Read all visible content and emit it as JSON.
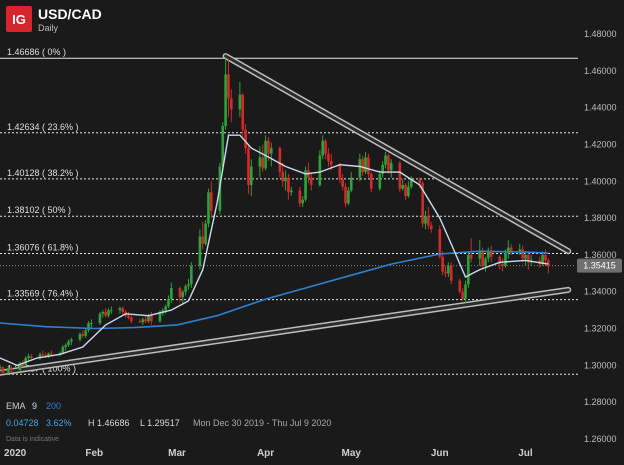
{
  "header": {
    "logo": "IG",
    "symbol": "USD/CAD",
    "interval": "Daily"
  },
  "colors": {
    "background": "#1a1a1a",
    "logo_bg": "#d7262b",
    "up": "#2ea33a",
    "down": "#d42a2a",
    "ema_short": "#c9dcef",
    "ema_long": "#2f80d0",
    "trendline": "#bdbdbd",
    "fib_line": "#e6e6e6",
    "last_price_bg": "#6f6f6f",
    "grid": "#3a3a3a"
  },
  "footer": {
    "ema_label": "EMA",
    "ema_short": "9",
    "ema_long": "200",
    "change": "0.04728",
    "change_pct": "3.62%",
    "high": "H 1.46686",
    "low": "L 1.29517",
    "range": "Mon Dec 30 2019 - Thu Jul 9 2020",
    "disclaimer": "Data is indicative"
  },
  "chart_data": {
    "type": "candlestick",
    "title": "USD/CAD Daily",
    "ylim": [
      1.26,
      1.48
    ],
    "y_ticks": [
      "1.48000",
      "1.46000",
      "1.44000",
      "1.42000",
      "1.40000",
      "1.38000",
      "1.36000",
      "1.34000",
      "1.32000",
      "1.30000",
      "1.28000",
      "1.26000"
    ],
    "x_labels": [
      "2020",
      "Feb",
      "Mar",
      "Apr",
      "May",
      "Jun",
      "Jul"
    ],
    "x_label_dates": [
      "2020-01-01",
      "2020-02-01",
      "2020-03-01",
      "2020-04-01",
      "2020-05-01",
      "2020-06-01",
      "2020-07-01"
    ],
    "x_start": "2019-12-30",
    "x_end": "2020-07-09",
    "x_axis_end": "2020-07-18",
    "last_price": "1.35415",
    "high": 1.46686,
    "low": 1.29517,
    "fib_levels": [
      {
        "label": "1.46686 ( 0% )",
        "value": 1.46686
      },
      {
        "label": "1.42634 ( 23.6% )",
        "value": 1.42634
      },
      {
        "label": "1.40128 ( 38.2% )",
        "value": 1.40128
      },
      {
        "label": "1.38102 ( 50% )",
        "value": 1.38102
      },
      {
        "label": "1.36076 ( 61.8% )",
        "value": 1.36076
      },
      {
        "label": "1.33569 ( 76.4% )",
        "value": 1.33569
      },
      {
        "label": "1.29517 ( 100% )",
        "value": 1.29517
      }
    ],
    "trendlines": [
      {
        "start": [
          "2020-03-18",
          1.468
        ],
        "end": [
          "2020-07-16",
          1.362
        ],
        "width": 4
      },
      {
        "start": [
          "2019-12-30",
          1.296
        ],
        "end": [
          "2020-07-16",
          1.341
        ],
        "width": 4
      }
    ],
    "ema_200": [
      [
        "2019-12-30",
        1.323
      ],
      [
        "2020-01-15",
        1.321
      ],
      [
        "2020-02-01",
        1.32
      ],
      [
        "2020-02-15",
        1.3205
      ],
      [
        "2020-03-01",
        1.322
      ],
      [
        "2020-03-15",
        1.327
      ],
      [
        "2020-04-01",
        1.336
      ],
      [
        "2020-04-15",
        1.342
      ],
      [
        "2020-05-01",
        1.349
      ],
      [
        "2020-05-15",
        1.355
      ],
      [
        "2020-06-01",
        1.3605
      ],
      [
        "2020-06-15",
        1.362
      ],
      [
        "2020-07-01",
        1.3615
      ],
      [
        "2020-07-09",
        1.361
      ]
    ],
    "ema_9": [
      [
        "2019-12-30",
        1.304
      ],
      [
        "2020-01-05",
        1.3
      ],
      [
        "2020-01-12",
        1.304
      ],
      [
        "2020-01-20",
        1.306
      ],
      [
        "2020-01-28",
        1.31
      ],
      [
        "2020-02-05",
        1.322
      ],
      [
        "2020-02-12",
        1.328
      ],
      [
        "2020-02-20",
        1.327
      ],
      [
        "2020-02-28",
        1.33
      ],
      [
        "2020-03-05",
        1.335
      ],
      [
        "2020-03-10",
        1.352
      ],
      [
        "2020-03-15",
        1.388
      ],
      [
        "2020-03-19",
        1.425
      ],
      [
        "2020-03-23",
        1.425
      ],
      [
        "2020-03-27",
        1.418
      ],
      [
        "2020-04-01",
        1.414
      ],
      [
        "2020-04-08",
        1.408
      ],
      [
        "2020-04-15",
        1.404
      ],
      [
        "2020-04-20",
        1.405
      ],
      [
        "2020-04-27",
        1.409
      ],
      [
        "2020-05-04",
        1.408
      ],
      [
        "2020-05-11",
        1.405
      ],
      [
        "2020-05-18",
        1.405
      ],
      [
        "2020-05-25",
        1.398
      ],
      [
        "2020-06-01",
        1.38
      ],
      [
        "2020-06-05",
        1.366
      ],
      [
        "2020-06-10",
        1.348
      ],
      [
        "2020-06-15",
        1.352
      ],
      [
        "2020-06-22",
        1.356
      ],
      [
        "2020-07-01",
        1.357
      ],
      [
        "2020-07-09",
        1.355
      ]
    ],
    "candles": [
      [
        "2019-12-30",
        1.299,
        1.3005,
        1.2965,
        1.299
      ],
      [
        "2019-12-31",
        1.299,
        1.2995,
        1.2952,
        1.296
      ],
      [
        "2020-01-02",
        1.296,
        1.3,
        1.2955,
        1.2985
      ],
      [
        "2020-01-03",
        1.2985,
        1.3,
        1.296,
        1.2975
      ],
      [
        "2020-01-06",
        1.2975,
        1.302,
        1.297,
        1.301
      ],
      [
        "2020-01-07",
        1.301,
        1.303,
        1.299,
        1.3
      ],
      [
        "2020-01-08",
        1.3,
        1.305,
        1.2995,
        1.304
      ],
      [
        "2020-01-09",
        1.304,
        1.3065,
        1.302,
        1.305
      ],
      [
        "2020-01-10",
        1.305,
        1.306,
        1.303,
        1.304
      ],
      [
        "2020-01-13",
        1.304,
        1.307,
        1.303,
        1.306
      ],
      [
        "2020-01-14",
        1.306,
        1.308,
        1.3045,
        1.3055
      ],
      [
        "2020-01-15",
        1.3055,
        1.307,
        1.304,
        1.305
      ],
      [
        "2020-01-16",
        1.305,
        1.307,
        1.304,
        1.3065
      ],
      [
        "2020-01-17",
        1.3065,
        1.308,
        1.305,
        1.306
      ],
      [
        "2020-01-20",
        1.306,
        1.3075,
        1.305,
        1.3065
      ],
      [
        "2020-01-21",
        1.3065,
        1.311,
        1.306,
        1.31
      ],
      [
        "2020-01-22",
        1.31,
        1.312,
        1.308,
        1.311
      ],
      [
        "2020-01-23",
        1.311,
        1.314,
        1.31,
        1.313
      ],
      [
        "2020-01-24",
        1.313,
        1.315,
        1.311,
        1.314
      ],
      [
        "2020-01-27",
        1.314,
        1.318,
        1.313,
        1.317
      ],
      [
        "2020-01-28",
        1.317,
        1.319,
        1.315,
        1.316
      ],
      [
        "2020-01-29",
        1.316,
        1.32,
        1.315,
        1.319
      ],
      [
        "2020-01-30",
        1.319,
        1.324,
        1.318,
        1.323
      ],
      [
        "2020-01-31",
        1.323,
        1.325,
        1.32,
        1.323
      ],
      [
        "2020-02-03",
        1.323,
        1.329,
        1.322,
        1.328
      ],
      [
        "2020-02-04",
        1.328,
        1.33,
        1.326,
        1.329
      ],
      [
        "2020-02-05",
        1.329,
        1.331,
        1.326,
        1.327
      ],
      [
        "2020-02-06",
        1.327,
        1.331,
        1.326,
        1.33
      ],
      [
        "2020-02-07",
        1.33,
        1.332,
        1.328,
        1.33
      ],
      [
        "2020-02-10",
        1.33,
        1.332,
        1.328,
        1.331
      ],
      [
        "2020-02-11",
        1.331,
        1.332,
        1.327,
        1.329
      ],
      [
        "2020-02-12",
        1.329,
        1.33,
        1.326,
        1.327
      ],
      [
        "2020-02-13",
        1.327,
        1.329,
        1.325,
        1.326
      ],
      [
        "2020-02-14",
        1.326,
        1.327,
        1.323,
        1.324
      ],
      [
        "2020-02-17",
        1.324,
        1.325,
        1.323,
        1.3235
      ],
      [
        "2020-02-18",
        1.3235,
        1.326,
        1.322,
        1.325
      ],
      [
        "2020-02-19",
        1.325,
        1.327,
        1.323,
        1.324
      ],
      [
        "2020-02-20",
        1.324,
        1.328,
        1.323,
        1.327
      ],
      [
        "2020-02-21",
        1.327,
        1.329,
        1.322,
        1.324
      ],
      [
        "2020-02-24",
        1.324,
        1.33,
        1.323,
        1.329
      ],
      [
        "2020-02-25",
        1.329,
        1.331,
        1.327,
        1.33
      ],
      [
        "2020-02-26",
        1.33,
        1.333,
        1.328,
        1.332
      ],
      [
        "2020-02-27",
        1.332,
        1.338,
        1.331,
        1.336
      ],
      [
        "2020-02-28",
        1.336,
        1.345,
        1.334,
        1.342
      ],
      [
        "2020-03-02",
        1.342,
        1.343,
        1.334,
        1.337
      ],
      [
        "2020-03-03",
        1.337,
        1.341,
        1.333,
        1.34
      ],
      [
        "2020-03-04",
        1.34,
        1.344,
        1.338,
        1.343
      ],
      [
        "2020-03-05",
        1.343,
        1.347,
        1.341,
        1.344
      ],
      [
        "2020-03-06",
        1.344,
        1.356,
        1.342,
        1.354
      ],
      [
        "2020-03-09",
        1.354,
        1.374,
        1.352,
        1.37
      ],
      [
        "2020-03-10",
        1.37,
        1.378,
        1.363,
        1.366
      ],
      [
        "2020-03-11",
        1.366,
        1.379,
        1.365,
        1.377
      ],
      [
        "2020-03-12",
        1.377,
        1.396,
        1.375,
        1.394
      ],
      [
        "2020-03-13",
        1.394,
        1.4,
        1.38,
        1.384
      ],
      [
        "2020-03-16",
        1.384,
        1.41,
        1.382,
        1.408
      ],
      [
        "2020-03-17",
        1.408,
        1.432,
        1.406,
        1.43
      ],
      [
        "2020-03-18",
        1.43,
        1.4668,
        1.428,
        1.458
      ],
      [
        "2020-03-19",
        1.458,
        1.466,
        1.435,
        1.445
      ],
      [
        "2020-03-20",
        1.445,
        1.45,
        1.432,
        1.439
      ],
      [
        "2020-03-23",
        1.439,
        1.454,
        1.435,
        1.447
      ],
      [
        "2020-03-24",
        1.447,
        1.448,
        1.423,
        1.428
      ],
      [
        "2020-03-25",
        1.428,
        1.431,
        1.415,
        1.418
      ],
      [
        "2020-03-26",
        1.418,
        1.42,
        1.393,
        1.398
      ],
      [
        "2020-03-27",
        1.398,
        1.412,
        1.392,
        1.408
      ],
      [
        "2020-03-30",
        1.408,
        1.419,
        1.402,
        1.413
      ],
      [
        "2020-03-31",
        1.413,
        1.42,
        1.405,
        1.407
      ],
      [
        "2020-04-01",
        1.407,
        1.425,
        1.406,
        1.422
      ],
      [
        "2020-04-02",
        1.422,
        1.424,
        1.411,
        1.415
      ],
      [
        "2020-04-03",
        1.415,
        1.421,
        1.408,
        1.418
      ],
      [
        "2020-04-06",
        1.418,
        1.419,
        1.402,
        1.405
      ],
      [
        "2020-04-07",
        1.405,
        1.41,
        1.397,
        1.4
      ],
      [
        "2020-04-08",
        1.4,
        1.406,
        1.395,
        1.402
      ],
      [
        "2020-04-09",
        1.402,
        1.404,
        1.39,
        1.394
      ],
      [
        "2020-04-10",
        1.394,
        1.397,
        1.392,
        1.395
      ],
      [
        "2020-04-13",
        1.395,
        1.397,
        1.386,
        1.388
      ],
      [
        "2020-04-14",
        1.388,
        1.392,
        1.386,
        1.39
      ],
      [
        "2020-04-15",
        1.39,
        1.408,
        1.389,
        1.406
      ],
      [
        "2020-04-16",
        1.406,
        1.41,
        1.399,
        1.402
      ],
      [
        "2020-04-17",
        1.402,
        1.405,
        1.395,
        1.398
      ],
      [
        "2020-04-20",
        1.398,
        1.417,
        1.397,
        1.414
      ],
      [
        "2020-04-21",
        1.414,
        1.425,
        1.412,
        1.422
      ],
      [
        "2020-04-22",
        1.422,
        1.423,
        1.412,
        1.415
      ],
      [
        "2020-04-23",
        1.415,
        1.418,
        1.408,
        1.411
      ],
      [
        "2020-04-24",
        1.411,
        1.415,
        1.406,
        1.409
      ],
      [
        "2020-04-27",
        1.409,
        1.41,
        1.399,
        1.401
      ],
      [
        "2020-04-28",
        1.401,
        1.404,
        1.395,
        1.397
      ],
      [
        "2020-04-29",
        1.397,
        1.399,
        1.386,
        1.388
      ],
      [
        "2020-04-30",
        1.388,
        1.397,
        1.387,
        1.395
      ],
      [
        "2020-05-01",
        1.395,
        1.405,
        1.394,
        1.402
      ],
      [
        "2020-05-04",
        1.402,
        1.415,
        1.4,
        1.412
      ],
      [
        "2020-05-05",
        1.412,
        1.414,
        1.403,
        1.405
      ],
      [
        "2020-05-06",
        1.405,
        1.416,
        1.404,
        1.413
      ],
      [
        "2020-05-07",
        1.413,
        1.415,
        1.402,
        1.404
      ],
      [
        "2020-05-08",
        1.404,
        1.405,
        1.394,
        1.396
      ],
      [
        "2020-05-11",
        1.396,
        1.406,
        1.395,
        1.404
      ],
      [
        "2020-05-12",
        1.404,
        1.411,
        1.402,
        1.409
      ],
      [
        "2020-05-13",
        1.409,
        1.416,
        1.407,
        1.414
      ],
      [
        "2020-05-14",
        1.414,
        1.415,
        1.404,
        1.406
      ],
      [
        "2020-05-15",
        1.406,
        1.412,
        1.402,
        1.41
      ],
      [
        "2020-05-18",
        1.41,
        1.411,
        1.394,
        1.396
      ],
      [
        "2020-05-19",
        1.396,
        1.401,
        1.395,
        1.398
      ],
      [
        "2020-05-20",
        1.398,
        1.399,
        1.39,
        1.392
      ],
      [
        "2020-05-21",
        1.392,
        1.4,
        1.391,
        1.397
      ],
      [
        "2020-05-22",
        1.397,
        1.403,
        1.396,
        1.401
      ],
      [
        "2020-05-25",
        1.401,
        1.402,
        1.396,
        1.399
      ],
      [
        "2020-05-26",
        1.399,
        1.4,
        1.375,
        1.377
      ],
      [
        "2020-05-27",
        1.377,
        1.384,
        1.374,
        1.381
      ],
      [
        "2020-05-28",
        1.381,
        1.386,
        1.374,
        1.376
      ],
      [
        "2020-05-29",
        1.376,
        1.378,
        1.372,
        1.374
      ],
      [
        "2020-06-01",
        1.374,
        1.376,
        1.358,
        1.359
      ],
      [
        "2020-06-02",
        1.359,
        1.362,
        1.349,
        1.351
      ],
      [
        "2020-06-03",
        1.351,
        1.354,
        1.348,
        1.35
      ],
      [
        "2020-06-04",
        1.35,
        1.356,
        1.348,
        1.354
      ],
      [
        "2020-06-05",
        1.354,
        1.356,
        1.344,
        1.346
      ],
      [
        "2020-06-08",
        1.346,
        1.347,
        1.339,
        1.34
      ],
      [
        "2020-06-09",
        1.34,
        1.342,
        1.335,
        1.336
      ],
      [
        "2020-06-10",
        1.336,
        1.346,
        1.334,
        1.344
      ],
      [
        "2020-06-11",
        1.344,
        1.362,
        1.342,
        1.36
      ],
      [
        "2020-06-12",
        1.36,
        1.369,
        1.356,
        1.358
      ],
      [
        "2020-06-15",
        1.358,
        1.368,
        1.354,
        1.362
      ],
      [
        "2020-06-16",
        1.362,
        1.364,
        1.352,
        1.354
      ],
      [
        "2020-06-17",
        1.354,
        1.359,
        1.351,
        1.358
      ],
      [
        "2020-06-18",
        1.358,
        1.364,
        1.356,
        1.362
      ],
      [
        "2020-06-19",
        1.362,
        1.365,
        1.356,
        1.359
      ],
      [
        "2020-06-22",
        1.359,
        1.36,
        1.352,
        1.355
      ],
      [
        "2020-06-23",
        1.355,
        1.358,
        1.351,
        1.354
      ],
      [
        "2020-06-24",
        1.354,
        1.363,
        1.353,
        1.361
      ],
      [
        "2020-06-25",
        1.361,
        1.368,
        1.358,
        1.364
      ],
      [
        "2020-06-26",
        1.364,
        1.366,
        1.36,
        1.362
      ],
      [
        "2020-06-29",
        1.362,
        1.366,
        1.36,
        1.363
      ],
      [
        "2020-06-30",
        1.363,
        1.365,
        1.356,
        1.358
      ],
      [
        "2020-07-01",
        1.358,
        1.362,
        1.354,
        1.36
      ],
      [
        "2020-07-02",
        1.36,
        1.362,
        1.352,
        1.356
      ],
      [
        "2020-07-03",
        1.356,
        1.36,
        1.354,
        1.357
      ],
      [
        "2020-07-06",
        1.357,
        1.359,
        1.353,
        1.355
      ],
      [
        "2020-07-07",
        1.355,
        1.362,
        1.354,
        1.36
      ],
      [
        "2020-07-08",
        1.36,
        1.363,
        1.354,
        1.357
      ],
      [
        "2020-07-09",
        1.357,
        1.358,
        1.35,
        1.3541
      ]
    ]
  }
}
